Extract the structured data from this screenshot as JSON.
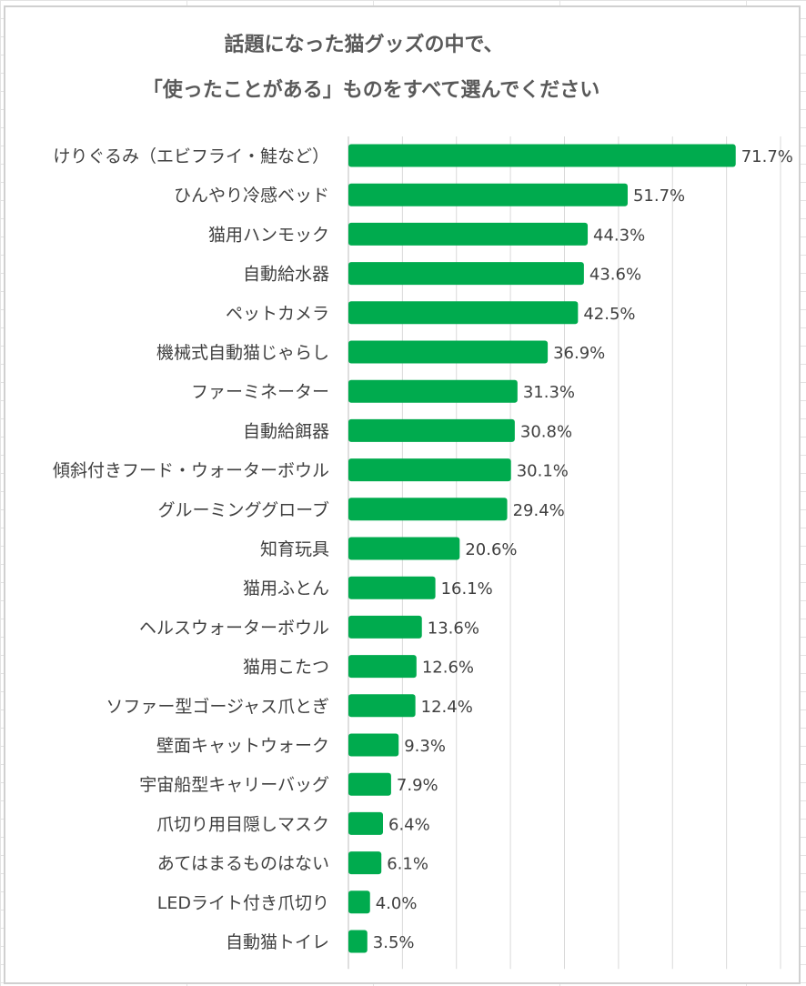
{
  "chart_data": {
    "type": "bar",
    "orientation": "horizontal",
    "title": [
      "話題になった猫グッズの中で、",
      "「使ったことがある」ものをすべて選んでください"
    ],
    "categories": [
      "けりぐるみ（エビフライ・鮭など）",
      "ひんやり冷感ベッド",
      "猫用ハンモック",
      "自動給水器",
      "ペットカメラ",
      "機械式自動猫じゃらし",
      "ファーミネーター",
      "自動給餌器",
      "傾斜付きフード・ウォーターボウル",
      "グルーミンググローブ",
      "知育玩具",
      "猫用ふとん",
      "ヘルスウォーターボウル",
      "猫用こたつ",
      "ソファー型ゴージャス爪とぎ",
      "壁面キャットウォーク",
      "宇宙船型キャリーバッグ",
      "爪切り用目隠しマスク",
      "あてはまるものはない",
      "LEDライト付き爪切り",
      "自動猫トイレ"
    ],
    "values": [
      71.7,
      51.7,
      44.3,
      43.6,
      42.5,
      36.9,
      31.3,
      30.8,
      30.1,
      29.4,
      20.6,
      16.1,
      13.6,
      12.6,
      12.4,
      9.3,
      7.9,
      6.4,
      6.1,
      4.0,
      3.5
    ],
    "value_labels": [
      "71.7%",
      "51.7%",
      "44.3%",
      "43.6%",
      "42.5%",
      "36.9%",
      "31.3%",
      "30.8%",
      "30.1%",
      "29.4%",
      "20.6%",
      "16.1%",
      "13.6%",
      "12.6%",
      "12.4%",
      "9.3%",
      "7.9%",
      "6.4%",
      "6.1%",
      "4.0%",
      "3.5%"
    ],
    "unit": "%",
    "xlim": [
      0,
      80
    ],
    "grid": true,
    "axis_tick_labels_shown": false,
    "bar_color": "#00ab4e"
  }
}
